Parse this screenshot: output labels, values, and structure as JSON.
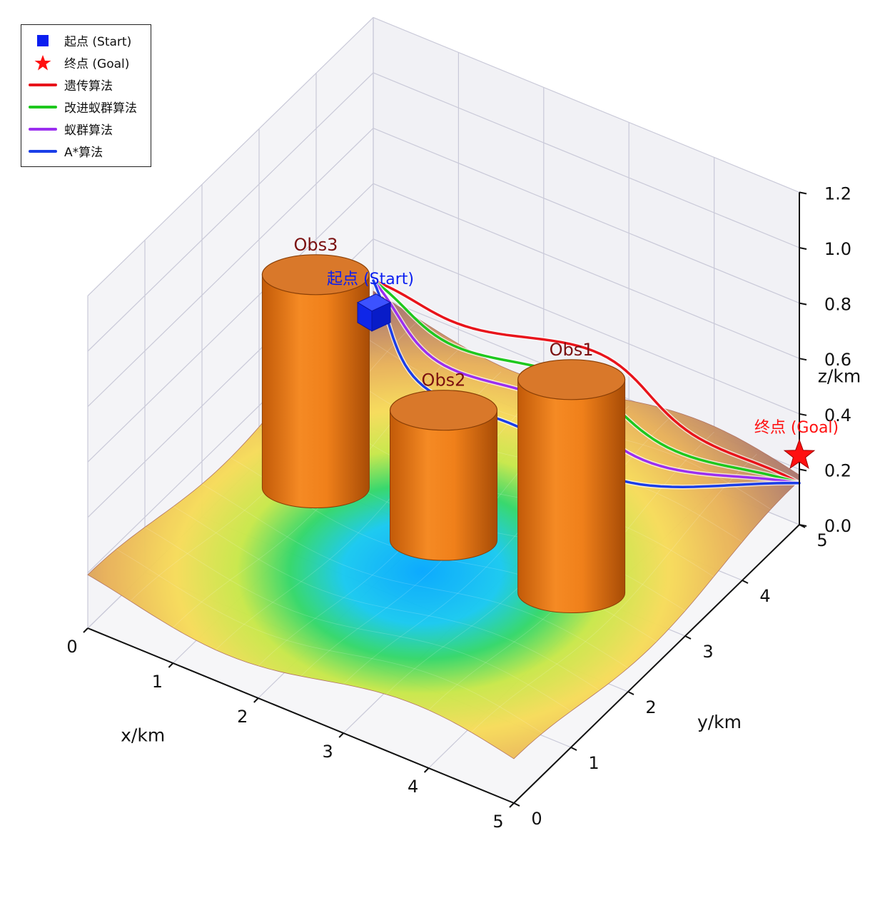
{
  "chart_data": {
    "type": "3d-surface-path",
    "xlabel": "x/km",
    "ylabel": "y/km",
    "zlabel": "z/km",
    "xlim": [
      0,
      5
    ],
    "ylim": [
      0,
      5
    ],
    "zlim": [
      0,
      1.2
    ],
    "x_ticks": [
      "0",
      "1",
      "2",
      "3",
      "4",
      "5"
    ],
    "y_ticks": [
      "0",
      "1",
      "2",
      "3",
      "4",
      "5"
    ],
    "z_ticks": [
      "0.0",
      "0.2",
      "0.4",
      "0.6",
      "0.8",
      "1.0",
      "1.2"
    ],
    "grid": true,
    "legend_placement": "top-left",
    "start": {
      "label": "起点 (Start)",
      "x": 0,
      "y": 5,
      "z": 0.15,
      "color": "#0a1ef0"
    },
    "goal": {
      "label": "终点 (Goal)",
      "x": 5,
      "y": 5,
      "z": 0.25,
      "color": "#ff1010"
    },
    "obstacles": [
      {
        "name": "Obs1",
        "x": 1.0,
        "y": 2.5,
        "z_top": 0.9,
        "color": "#f07f1a"
      },
      {
        "name": "Obs2",
        "x": 2.5,
        "y": 2.5,
        "z_top": 0.6,
        "color": "#f07f1a"
      },
      {
        "name": "Obs3",
        "x": 4.0,
        "y": 2.5,
        "z_top": 0.9,
        "color": "#f07f1a"
      }
    ],
    "series": [
      {
        "name": "遗传算法",
        "color": "#e8141b"
      },
      {
        "name": "改进蚁群算法",
        "color": "#1ec81e"
      },
      {
        "name": "蚁群算法",
        "color": "#9b2ff0"
      },
      {
        "name": "A*算法",
        "color": "#1a3ee8"
      }
    ]
  },
  "legend": {
    "start_label": "起点 (Start)",
    "goal_label": "终点 (Goal)",
    "items": [
      "遗传算法",
      "改进蚁群算法",
      "蚁群算法",
      "A*算法"
    ]
  }
}
